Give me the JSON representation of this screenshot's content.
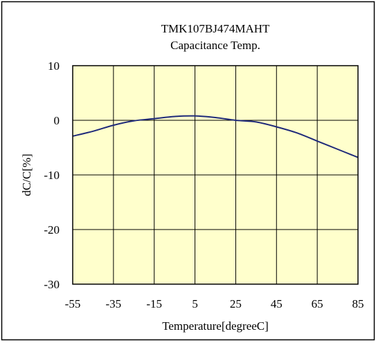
{
  "chart_data": {
    "type": "line",
    "title": "TMK107BJ474MAHT",
    "subtitle": "Capacitance Temp.",
    "xlabel": "Temperature[degreeC]",
    "ylabel": "dC/C[%]",
    "xlim": [
      -55,
      85
    ],
    "ylim": [
      -30,
      10
    ],
    "x_ticks": [
      -55,
      -35,
      -15,
      5,
      25,
      45,
      65,
      85
    ],
    "y_ticks": [
      10,
      0,
      -10,
      -20,
      -30
    ],
    "grid": true,
    "legend": "none",
    "colors": {
      "plot_background": "#FFFFCC",
      "line": "#1F2A7A",
      "grid": "#000000"
    },
    "series": [
      {
        "x": [
          -55,
          -45,
          -35,
          -25,
          -15,
          -5,
          5,
          15,
          25,
          35,
          45,
          55,
          65,
          75,
          85
        ],
        "values": [
          -2.9,
          -2.0,
          -0.9,
          -0.1,
          0.3,
          0.7,
          0.8,
          0.5,
          0.0,
          -0.3,
          -1.2,
          -2.3,
          -3.8,
          -5.3,
          -6.8
        ]
      }
    ]
  }
}
